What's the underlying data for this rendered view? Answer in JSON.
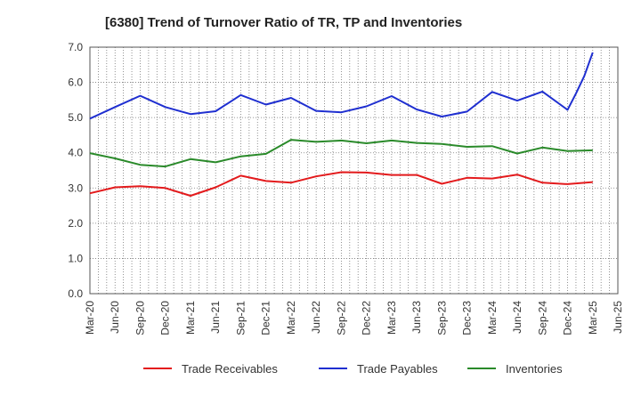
{
  "chart_data": {
    "type": "line",
    "title": "[6380]  Trend of Turnover Ratio of TR, TP and Inventories",
    "xlabel": "",
    "ylabel": "",
    "ylim": [
      0,
      7
    ],
    "yticks": [
      "0.0",
      "1.0",
      "2.0",
      "3.0",
      "4.0",
      "5.0",
      "6.0",
      "7.0"
    ],
    "x_tick_labels": [
      "Mar-20",
      "Jun-20",
      "Sep-20",
      "Dec-20",
      "Mar-21",
      "Jun-21",
      "Sep-21",
      "Dec-21",
      "Mar-22",
      "Jun-22",
      "Sep-22",
      "Dec-22",
      "Mar-23",
      "Jun-23",
      "Sep-23",
      "Dec-23",
      "Mar-24",
      "Jun-24",
      "Sep-24",
      "Dec-24",
      "Mar-25",
      "Jun-25"
    ],
    "x_months": [
      "Mar-20",
      "Apr-20",
      "May-20",
      "Jun-20",
      "Jul-20",
      "Aug-20",
      "Sep-20",
      "Oct-20",
      "Nov-20",
      "Dec-20",
      "Jan-21",
      "Feb-21",
      "Mar-21",
      "Apr-21",
      "May-21",
      "Jun-21",
      "Jul-21",
      "Aug-21",
      "Sep-21",
      "Oct-21",
      "Nov-21",
      "Dec-21",
      "Jan-22",
      "Feb-22",
      "Mar-22",
      "Apr-22",
      "May-22",
      "Jun-22",
      "Jul-22",
      "Aug-22",
      "Sep-22",
      "Oct-22",
      "Nov-22",
      "Dec-22",
      "Jan-23",
      "Feb-23",
      "Mar-23",
      "Apr-23",
      "May-23",
      "Jun-23",
      "Jul-23",
      "Aug-23",
      "Sep-23",
      "Oct-23",
      "Nov-23",
      "Dec-23",
      "Jan-24",
      "Feb-24",
      "Mar-24",
      "Apr-24",
      "May-24",
      "Jun-24",
      "Jul-24",
      "Aug-24",
      "Sep-24",
      "Oct-24",
      "Nov-24",
      "Dec-24",
      "Jan-25",
      "Feb-25",
      "Mar-25",
      "Apr-25",
      "May-25",
      "Jun-25"
    ],
    "grid": true,
    "legend_position": "bottom",
    "series": [
      {
        "name": "Trade Receivables",
        "color": "#e31a1c",
        "points": [
          [
            "Mar-20",
            2.85
          ],
          [
            "Jun-20",
            3.02
          ],
          [
            "Sep-20",
            3.05
          ],
          [
            "Dec-20",
            3.0
          ],
          [
            "Mar-21",
            2.78
          ],
          [
            "Jun-21",
            3.02
          ],
          [
            "Sep-21",
            3.35
          ],
          [
            "Dec-21",
            3.2
          ],
          [
            "Mar-22",
            3.15
          ],
          [
            "Jun-22",
            3.33
          ],
          [
            "Sep-22",
            3.45
          ],
          [
            "Dec-22",
            3.44
          ],
          [
            "Mar-23",
            3.37
          ],
          [
            "Jun-23",
            3.37
          ],
          [
            "Sep-23",
            3.12
          ],
          [
            "Dec-23",
            3.29
          ],
          [
            "Mar-24",
            3.27
          ],
          [
            "Jun-24",
            3.38
          ],
          [
            "Sep-24",
            3.15
          ],
          [
            "Dec-24",
            3.11
          ],
          [
            "Mar-25",
            3.17
          ]
        ]
      },
      {
        "name": "Trade Payables",
        "color": "#1f2fd0",
        "points": [
          [
            "Mar-20",
            4.97
          ],
          [
            "Jun-20",
            5.3
          ],
          [
            "Sep-20",
            5.62
          ],
          [
            "Dec-20",
            5.3
          ],
          [
            "Mar-21",
            5.1
          ],
          [
            "Jun-21",
            5.18
          ],
          [
            "Sep-21",
            5.64
          ],
          [
            "Dec-21",
            5.37
          ],
          [
            "Mar-22",
            5.56
          ],
          [
            "Jun-22",
            5.19
          ],
          [
            "Sep-22",
            5.15
          ],
          [
            "Dec-22",
            5.32
          ],
          [
            "Mar-23",
            5.61
          ],
          [
            "Jun-23",
            5.23
          ],
          [
            "Sep-23",
            5.03
          ],
          [
            "Dec-23",
            5.17
          ],
          [
            "Mar-24",
            5.73
          ],
          [
            "Jun-24",
            5.48
          ],
          [
            "Sep-24",
            5.74
          ],
          [
            "Dec-24",
            5.22
          ],
          [
            "Jan-25",
            5.68
          ],
          [
            "Feb-25",
            6.18
          ],
          [
            "Mar-25",
            6.85
          ]
        ]
      },
      {
        "name": "Inventories",
        "color": "#2a8a2a",
        "points": [
          [
            "Mar-20",
            3.99
          ],
          [
            "Jun-20",
            3.84
          ],
          [
            "Sep-20",
            3.66
          ],
          [
            "Dec-20",
            3.61
          ],
          [
            "Mar-21",
            3.82
          ],
          [
            "Jun-21",
            3.73
          ],
          [
            "Sep-21",
            3.9
          ],
          [
            "Dec-21",
            3.97
          ],
          [
            "Mar-22",
            4.37
          ],
          [
            "Jun-22",
            4.31
          ],
          [
            "Sep-22",
            4.35
          ],
          [
            "Dec-22",
            4.27
          ],
          [
            "Mar-23",
            4.35
          ],
          [
            "Jun-23",
            4.28
          ],
          [
            "Sep-23",
            4.25
          ],
          [
            "Dec-23",
            4.17
          ],
          [
            "Mar-24",
            4.19
          ],
          [
            "Jun-24",
            3.98
          ],
          [
            "Sep-24",
            4.15
          ],
          [
            "Dec-24",
            4.05
          ],
          [
            "Mar-25",
            4.07
          ]
        ]
      }
    ]
  }
}
